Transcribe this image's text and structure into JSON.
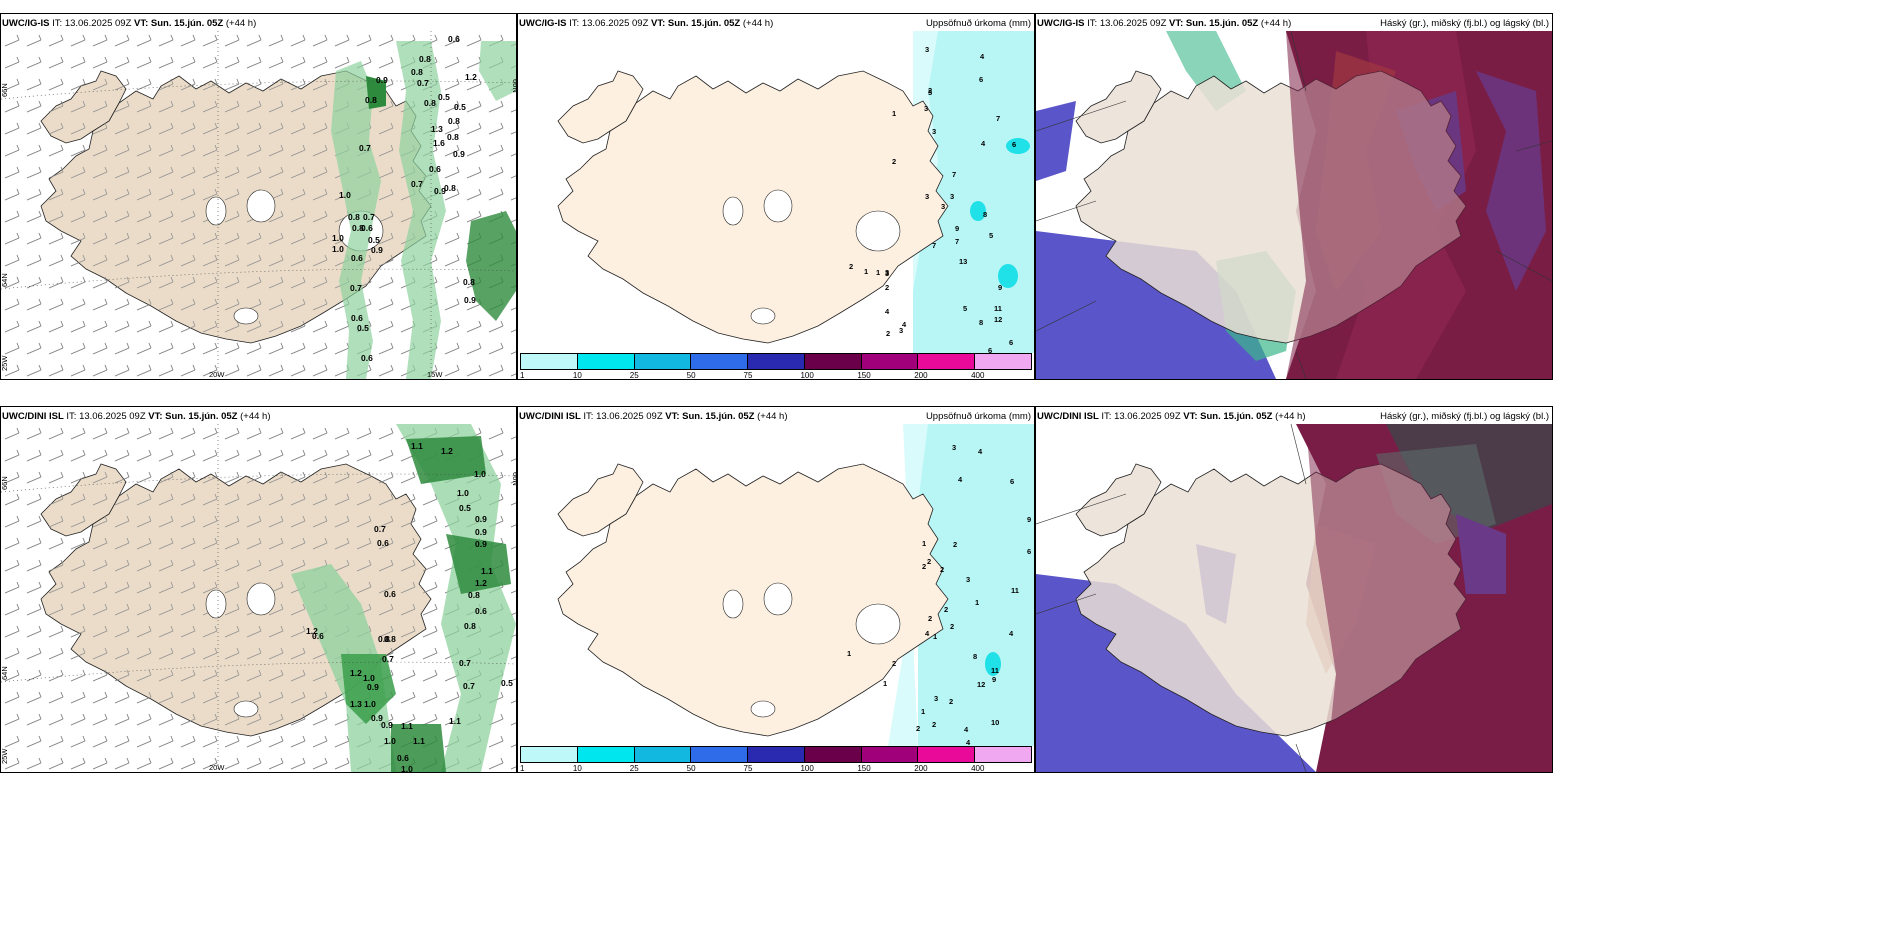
{
  "panels": [
    {
      "model": "UWC/IG-IS",
      "it_label": "IT:",
      "it": "13.06.2025 09Z",
      "vt_label": "VT:",
      "vt": "Sun. 15.jún. 05Z",
      "lead": "(+44 h)",
      "title": ""
    },
    {
      "model": "UWC/IG-IS",
      "it_label": "IT:",
      "it": "13.06.2025 09Z",
      "vt_label": "VT:",
      "vt": "Sun. 15.jún. 05Z",
      "lead": "(+44 h)",
      "title": "Uppsöfnuð úrkoma (mm)"
    },
    {
      "model": "UWC/IG-IS",
      "it_label": "IT:",
      "it": "13.06.2025 09Z",
      "vt_label": "VT:",
      "vt": "Sun. 15.jún. 05Z",
      "lead": "(+44 h)",
      "title": "Háský (gr.), miðský (fj.bl.) og lágský (bl.)"
    },
    {
      "model": "UWC/DINI ISL",
      "it_label": "IT:",
      "it": "13.06.2025 09Z",
      "vt_label": "VT:",
      "vt": "Sun. 15.jún. 05Z",
      "lead": "(+44 h)",
      "title": ""
    },
    {
      "model": "UWC/DINI ISL",
      "it_label": "IT:",
      "it": "13.06.2025 09Z",
      "vt_label": "VT:",
      "vt": "Sun. 15.jún. 05Z",
      "lead": "(+44 h)",
      "title": "Uppsöfnuð úrkoma (mm)"
    },
    {
      "model": "UWC/DINI ISL",
      "it_label": "IT:",
      "it": "13.06.2025 09Z",
      "vt_label": "VT:",
      "vt": "Sun. 15.jún. 05Z",
      "lead": "(+44 h)",
      "title": "Háský (gr.), miðský (fj.bl.) og lágský (bl.)"
    }
  ],
  "axis_labels": {
    "lat_66": "66N",
    "lat_64": "64N",
    "lon_25": "25W",
    "lon_20": "20W",
    "lon_15": "15W"
  },
  "precip_legend": {
    "colors": [
      "#bff8f8",
      "#00e6ee",
      "#12b8e0",
      "#2e6cea",
      "#2a2ab0",
      "#6a004a",
      "#a0007a",
      "#ea0a9a",
      "#f0a8f0"
    ],
    "ticks": [
      "1",
      "10",
      "25",
      "50",
      "75",
      "100",
      "150",
      "200",
      "400"
    ]
  },
  "wind_gust_labels_ig": [
    "0.8",
    "0.6",
    "1.2",
    "0.8",
    "0.7",
    "0.9",
    "0.8",
    "0.5",
    "0.5",
    "0.8",
    "0.8",
    "1.3",
    "1.6",
    "0.8",
    "0.9",
    "0.7",
    "0.6",
    "1.0",
    "0.7",
    "0.9",
    "0.8",
    "0.8",
    "0.7",
    "0.6",
    "1.0",
    "0.8",
    "0.5",
    "0.9",
    "1.0",
    "0.6",
    "0.7",
    "0.8",
    "0.9",
    "0.6",
    "0.5",
    "0.6"
  ],
  "wind_gust_labels_dini": [
    "1.1",
    "1.2",
    "1.0",
    "1.0",
    "0.5",
    "0.9",
    "0.7",
    "0.6",
    "0.9",
    "0.9",
    "1.1",
    "1.2",
    "0.8",
    "0.6",
    "0.8",
    "0.6",
    "1.2",
    "0.6",
    "0.8",
    "0.8",
    "0.7",
    "1.2",
    "1.0",
    "0.9",
    "1.3",
    "1.0",
    "0.9",
    "0.9",
    "1.1",
    "1.0",
    "1.1",
    "0.6",
    "1.0",
    "1.1",
    "0.7",
    "0.7",
    "0.5",
    "0.9",
    "1.3",
    "1.0",
    "1.0"
  ],
  "precip_labels_ig": [
    "3",
    "4",
    "2",
    "6",
    "1",
    "3",
    "3",
    "7",
    "3",
    "4",
    "6",
    "2",
    "7",
    "3",
    "3",
    "3",
    "8",
    "9",
    "7",
    "5",
    "13",
    "2",
    "3",
    "7",
    "1",
    "3",
    "2",
    "9",
    "1",
    "11",
    "12",
    "4",
    "2",
    "5",
    "8",
    "6",
    "3",
    "4",
    "6",
    "8",
    "4",
    "1",
    "2"
  ],
  "precip_labels_dini": [
    "3",
    "4",
    "4",
    "6",
    "9",
    "2",
    "1",
    "2",
    "2",
    "6",
    "3",
    "11",
    "2",
    "1",
    "2",
    "4",
    "2",
    "1",
    "2",
    "8",
    "11",
    "9",
    "12",
    "4",
    "1",
    "2",
    "1",
    "3",
    "1",
    "2",
    "2",
    "10",
    "2",
    "4",
    "4",
    "6"
  ]
}
